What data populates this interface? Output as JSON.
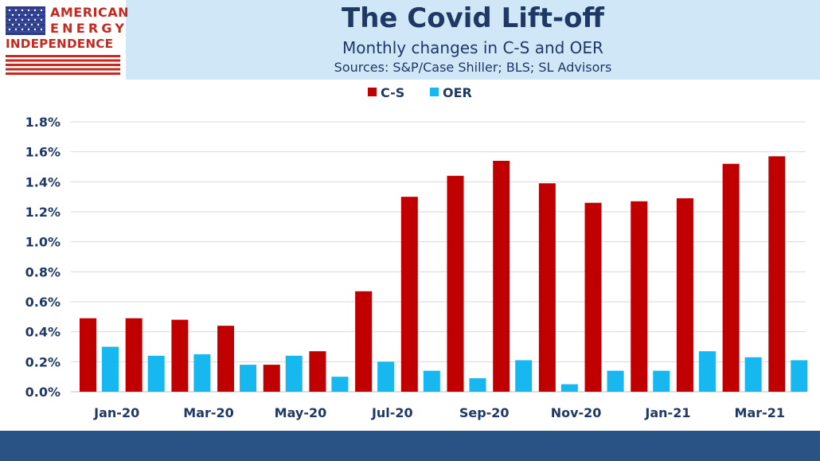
{
  "header": {
    "title": "The Covid Lift-off",
    "subtitle": "Monthly changes in C-S and OER",
    "sources": "Sources: S&P/Case Shiller; BLS; SL Advisors"
  },
  "logo": {
    "line1": "AMERICAN",
    "line2": "ENERGY",
    "line3": "INDEPENDENCE",
    "red": "#c8291f",
    "blue": "#1f3a93"
  },
  "colors": {
    "header_bg": "#cfe7f7",
    "title": "#1f3864",
    "footer_bar": "#295385",
    "axis_text": "#1f3864"
  },
  "chart_data": {
    "type": "bar",
    "categories": [
      "Jan-20",
      "Feb-20",
      "Mar-20",
      "Apr-20",
      "May-20",
      "Jun-20",
      "Jul-20",
      "Aug-20",
      "Sep-20",
      "Oct-20",
      "Nov-20",
      "Dec-20",
      "Jan-21",
      "Feb-21",
      "Mar-21",
      "Apr-21"
    ],
    "x_tick_labels": [
      "Jan-20",
      "",
      "Mar-20",
      "",
      "May-20",
      "",
      "Jul-20",
      "",
      "Sep-20",
      "",
      "Nov-20",
      "",
      "Jan-21",
      "",
      "Mar-21",
      ""
    ],
    "series": [
      {
        "name": "C-S",
        "color": "#c00000",
        "values": [
          0.49,
          0.49,
          0.48,
          0.44,
          0.18,
          0.27,
          0.67,
          1.3,
          1.44,
          1.54,
          1.39,
          1.26,
          1.27,
          1.29,
          1.52,
          1.57
        ]
      },
      {
        "name": "OER",
        "color": "#17b7f0",
        "values": [
          0.3,
          0.24,
          0.25,
          0.18,
          0.24,
          0.1,
          0.2,
          0.14,
          0.09,
          0.21,
          0.05,
          0.14,
          0.14,
          0.27,
          0.23,
          0.21
        ]
      }
    ],
    "ylim": [
      0,
      1.8
    ],
    "y_ticks": [
      "0.0%",
      "0.2%",
      "0.4%",
      "0.6%",
      "0.8%",
      "1.0%",
      "1.2%",
      "1.4%",
      "1.6%",
      "1.8%"
    ],
    "grid": true,
    "legend_position": "top-center"
  }
}
